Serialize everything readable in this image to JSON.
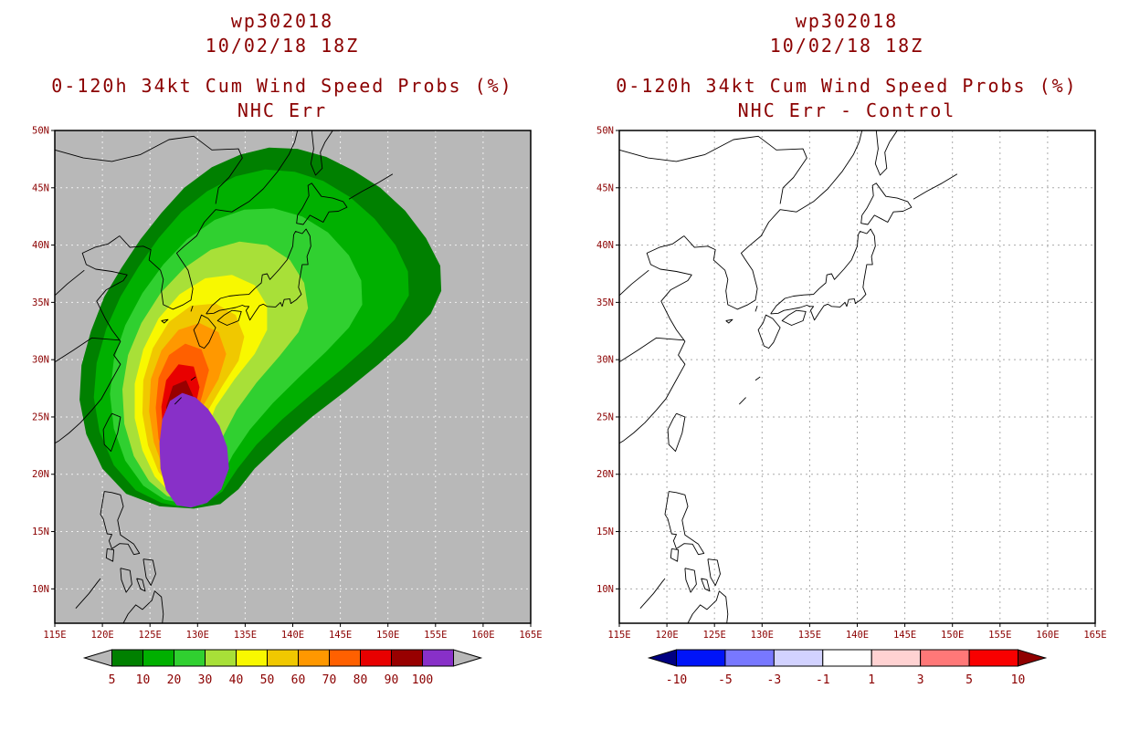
{
  "page": {
    "background": "#ffffff",
    "text_color": "#8b0000"
  },
  "panels": [
    {
      "name": "nhc-err",
      "titles": [
        "wp302018",
        "10/02/18 18Z"
      ],
      "subtitles": [
        "0-120h 34kt Cum Wind Speed Probs (%)",
        "NHC Err"
      ]
    },
    {
      "name": "nhc-err-minus-control",
      "titles": [
        "wp302018",
        "10/02/18 18Z"
      ],
      "subtitles": [
        "0-120h 34kt Cum Wind Speed Probs (%)",
        "NHC Err - Control"
      ]
    }
  ],
  "chart_data": [
    {
      "type": "heatmap",
      "subtype": "filled-contour-probability-map",
      "title": "wp302018 10/02/18 18Z",
      "subtitle": "0-120h 34kt Cum Wind Speed Probs (%) - NHC Err",
      "lon_range": [
        115,
        165
      ],
      "lat_range": [
        7,
        50
      ],
      "x_ticks": [
        "115E",
        "120E",
        "125E",
        "130E",
        "135E",
        "140E",
        "145E",
        "150E",
        "155E",
        "160E",
        "165E"
      ],
      "y_ticks": [
        "50N",
        "45N",
        "40N",
        "35N",
        "30N",
        "25N",
        "20N",
        "15N",
        "10N"
      ],
      "grid": true,
      "grid_color": "#f0f0f0",
      "background_color": "#b8b8b8",
      "colorbar": {
        "labels": [
          "5",
          "10",
          "20",
          "30",
          "40",
          "50",
          "60",
          "70",
          "80",
          "90",
          "100"
        ],
        "cell_colors": [
          "#008000",
          "#00b000",
          "#30d030",
          "#a8e038",
          "#f8f800",
          "#f0c800",
          "#ff9800",
          "#ff6000",
          "#e80000",
          "#980000",
          "#8830c8"
        ],
        "left_arrow_color": "#b8b8b8",
        "right_arrow_color": "#b8b8b8"
      },
      "contours": [
        {
          "level": 5,
          "color": "#008000",
          "polygon": [
            [
              126.0,
              17.2
            ],
            [
              122.5,
              18.3
            ],
            [
              120.0,
              20.5
            ],
            [
              118.3,
              23.5
            ],
            [
              117.6,
              26.5
            ],
            [
              117.8,
              29.5
            ],
            [
              118.8,
              32.5
            ],
            [
              120.2,
              35.5
            ],
            [
              122.0,
              38.0
            ],
            [
              124.0,
              40.5
            ],
            [
              126.2,
              42.8
            ],
            [
              128.6,
              45.0
            ],
            [
              131.5,
              46.8
            ],
            [
              134.5,
              47.9
            ],
            [
              137.5,
              48.5
            ],
            [
              140.5,
              48.4
            ],
            [
              143.5,
              47.7
            ],
            [
              146.4,
              46.5
            ],
            [
              149.2,
              45.0
            ],
            [
              151.8,
              43.0
            ],
            [
              154.0,
              40.6
            ],
            [
              155.5,
              38.2
            ],
            [
              155.6,
              36.0
            ],
            [
              154.5,
              34.0
            ],
            [
              152.0,
              31.8
            ],
            [
              149.0,
              29.6
            ],
            [
              145.6,
              27.3
            ],
            [
              142.0,
              25.0
            ],
            [
              138.8,
              22.7
            ],
            [
              136.0,
              20.5
            ],
            [
              134.3,
              18.7
            ],
            [
              132.4,
              17.4
            ],
            [
              129.6,
              17.0
            ]
          ]
        },
        {
          "level": 10,
          "color": "#00b000",
          "polygon": [
            [
              126.2,
              17.5
            ],
            [
              123.5,
              18.6
            ],
            [
              121.2,
              20.8
            ],
            [
              119.7,
              23.7
            ],
            [
              119.1,
              26.7
            ],
            [
              119.4,
              29.7
            ],
            [
              120.4,
              32.7
            ],
            [
              121.9,
              35.5
            ],
            [
              123.8,
              38.1
            ],
            [
              125.9,
              40.6
            ],
            [
              128.3,
              42.9
            ],
            [
              131.0,
              44.7
            ],
            [
              134.0,
              46.0
            ],
            [
              137.1,
              46.6
            ],
            [
              140.2,
              46.4
            ],
            [
              143.2,
              45.6
            ],
            [
              146.0,
              44.2
            ],
            [
              148.6,
              42.3
            ],
            [
              150.8,
              40.0
            ],
            [
              152.1,
              37.7
            ],
            [
              152.2,
              35.6
            ],
            [
              150.7,
              33.5
            ],
            [
              148.2,
              31.4
            ],
            [
              145.2,
              29.2
            ],
            [
              142.0,
              27.0
            ],
            [
              138.9,
              24.8
            ],
            [
              136.2,
              22.6
            ],
            [
              134.2,
              20.5
            ],
            [
              132.6,
              18.5
            ],
            [
              130.5,
              17.3
            ],
            [
              128.0,
              17.2
            ]
          ]
        },
        {
          "level": 20,
          "color": "#30d030",
          "polygon": [
            [
              126.5,
              17.8
            ],
            [
              124.3,
              19.0
            ],
            [
              122.4,
              21.2
            ],
            [
              121.2,
              24.0
            ],
            [
              120.8,
              27.0
            ],
            [
              121.2,
              30.0
            ],
            [
              122.4,
              33.0
            ],
            [
              124.2,
              35.8
            ],
            [
              126.4,
              38.3
            ],
            [
              128.9,
              40.5
            ],
            [
              131.8,
              42.2
            ],
            [
              134.9,
              43.1
            ],
            [
              138.0,
              43.2
            ],
            [
              141.0,
              42.5
            ],
            [
              143.7,
              41.1
            ],
            [
              145.9,
              39.1
            ],
            [
              147.2,
              36.9
            ],
            [
              147.3,
              34.8
            ],
            [
              145.9,
              32.8
            ],
            [
              143.5,
              30.7
            ],
            [
              140.7,
              28.5
            ],
            [
              137.9,
              26.2
            ],
            [
              135.5,
              23.9
            ],
            [
              133.7,
              21.7
            ],
            [
              132.4,
              19.6
            ],
            [
              130.5,
              17.9
            ],
            [
              128.2,
              17.5
            ]
          ]
        },
        {
          "level": 30,
          "color": "#a8e038",
          "polygon": [
            [
              126.8,
              18.1
            ],
            [
              124.9,
              19.4
            ],
            [
              123.3,
              21.6
            ],
            [
              122.3,
              24.4
            ],
            [
              122.1,
              27.4
            ],
            [
              122.7,
              30.4
            ],
            [
              124.1,
              33.2
            ],
            [
              126.1,
              35.8
            ],
            [
              128.6,
              38.0
            ],
            [
              131.4,
              39.6
            ],
            [
              134.4,
              40.3
            ],
            [
              137.3,
              40.0
            ],
            [
              139.7,
              38.7
            ],
            [
              141.2,
              36.7
            ],
            [
              141.6,
              34.5
            ],
            [
              140.6,
              32.4
            ],
            [
              138.6,
              30.3
            ],
            [
              136.2,
              28.0
            ],
            [
              134.1,
              25.6
            ],
            [
              132.6,
              23.2
            ],
            [
              131.6,
              20.8
            ],
            [
              130.1,
              18.6
            ],
            [
              128.1,
              17.8
            ]
          ]
        },
        {
          "level": 40,
          "color": "#f8f800",
          "polygon": [
            [
              127.1,
              18.4
            ],
            [
              125.5,
              19.8
            ],
            [
              124.2,
              22.1
            ],
            [
              123.4,
              24.9
            ],
            [
              123.4,
              27.9
            ],
            [
              124.3,
              30.9
            ],
            [
              125.9,
              33.6
            ],
            [
              128.1,
              35.7
            ],
            [
              130.8,
              37.1
            ],
            [
              133.6,
              37.4
            ],
            [
              136.0,
              36.5
            ],
            [
              137.3,
              34.7
            ],
            [
              137.3,
              32.6
            ],
            [
              136.0,
              30.5
            ],
            [
              133.9,
              28.3
            ],
            [
              131.9,
              25.9
            ],
            [
              130.7,
              23.3
            ],
            [
              130.0,
              20.7
            ],
            [
              128.8,
              18.6
            ]
          ]
        },
        {
          "level": 50,
          "color": "#f0c800",
          "polygon": [
            [
              127.4,
              18.7
            ],
            [
              125.9,
              20.2
            ],
            [
              124.8,
              22.5
            ],
            [
              124.2,
              25.3
            ],
            [
              124.3,
              28.2
            ],
            [
              125.3,
              31.0
            ],
            [
              127.0,
              33.3
            ],
            [
              129.3,
              34.7
            ],
            [
              131.9,
              34.9
            ],
            [
              134.0,
              33.9
            ],
            [
              134.9,
              32.0
            ],
            [
              134.3,
              29.9
            ],
            [
              132.6,
              27.7
            ],
            [
              130.9,
              25.3
            ],
            [
              130.0,
              22.7
            ],
            [
              129.2,
              20.1
            ],
            [
              128.1,
              18.5
            ]
          ]
        },
        {
          "level": 60,
          "color": "#ff9800",
          "polygon": [
            [
              127.7,
              19.0
            ],
            [
              126.4,
              20.5
            ],
            [
              125.4,
              22.8
            ],
            [
              124.9,
              25.5
            ],
            [
              125.1,
              28.3
            ],
            [
              126.2,
              30.8
            ],
            [
              128.0,
              32.6
            ],
            [
              130.2,
              33.2
            ],
            [
              132.2,
              32.4
            ],
            [
              133.0,
              30.5
            ],
            [
              132.2,
              28.3
            ],
            [
              130.6,
              26.0
            ],
            [
              129.7,
              23.4
            ],
            [
              129.1,
              20.8
            ],
            [
              128.4,
              19.3
            ]
          ]
        },
        {
          "level": 70,
          "color": "#ff6000",
          "polygon": [
            [
              127.9,
              19.3
            ],
            [
              126.8,
              20.8
            ],
            [
              125.9,
              23.1
            ],
            [
              125.6,
              25.8
            ],
            [
              125.9,
              28.4
            ],
            [
              127.0,
              30.4
            ],
            [
              128.7,
              31.4
            ],
            [
              130.4,
              30.9
            ],
            [
              131.2,
              29.1
            ],
            [
              130.5,
              26.9
            ],
            [
              129.6,
              24.4
            ],
            [
              129.2,
              21.8
            ],
            [
              128.6,
              19.9
            ]
          ]
        },
        {
          "level": 80,
          "color": "#e80000",
          "polygon": [
            [
              128.1,
              19.6
            ],
            [
              127.1,
              21.1
            ],
            [
              126.4,
              23.4
            ],
            [
              126.2,
              25.9
            ],
            [
              126.7,
              28.2
            ],
            [
              128.0,
              29.6
            ],
            [
              129.6,
              29.4
            ],
            [
              130.2,
              27.6
            ],
            [
              129.6,
              25.2
            ],
            [
              129.0,
              22.7
            ],
            [
              128.5,
              20.3
            ]
          ]
        },
        {
          "level": 90,
          "color": "#980000",
          "polygon": [
            [
              128.3,
              19.9
            ],
            [
              127.4,
              21.4
            ],
            [
              126.8,
              23.6
            ],
            [
              126.7,
              25.9
            ],
            [
              127.4,
              27.7
            ],
            [
              128.8,
              28.2
            ],
            [
              129.6,
              26.7
            ],
            [
              129.2,
              24.3
            ],
            [
              128.7,
              21.9
            ],
            [
              128.4,
              20.3
            ]
          ]
        },
        {
          "level": 100,
          "color": "#8830c8",
          "polygon": [
            [
              127.8,
              17.3
            ],
            [
              126.7,
              18.6
            ],
            [
              126.1,
              20.5
            ],
            [
              126.0,
              22.7
            ],
            [
              126.3,
              24.8
            ],
            [
              127.1,
              26.4
            ],
            [
              128.4,
              27.1
            ],
            [
              129.8,
              26.7
            ],
            [
              131.1,
              25.7
            ],
            [
              132.3,
              24.2
            ],
            [
              133.1,
              22.4
            ],
            [
              133.3,
              20.5
            ],
            [
              132.5,
              18.7
            ],
            [
              131.0,
              17.5
            ],
            [
              129.3,
              17.1
            ]
          ]
        }
      ]
    },
    {
      "type": "heatmap",
      "subtype": "filled-contour-difference-map",
      "title": "wp302018 10/02/18 18Z",
      "subtitle": "0-120h 34kt Cum Wind Speed Probs (%) - NHC Err - Control",
      "lon_range": [
        115,
        165
      ],
      "lat_range": [
        7,
        50
      ],
      "x_ticks": [
        "115E",
        "120E",
        "125E",
        "130E",
        "135E",
        "140E",
        "145E",
        "150E",
        "155E",
        "160E",
        "165E"
      ],
      "y_ticks": [
        "50N",
        "45N",
        "40N",
        "35N",
        "30N",
        "25N",
        "20N",
        "15N",
        "10N"
      ],
      "grid": true,
      "grid_color": "#aaaaaa",
      "background_color": "#ffffff",
      "colorbar": {
        "labels": [
          "-10",
          "-5",
          "-3",
          "-1",
          "1",
          "3",
          "5",
          "10"
        ],
        "cell_colors": [
          "#0014f8",
          "#7878ff",
          "#d2d2ff",
          "#ffffff",
          "#ffd2d2",
          "#ff7878",
          "#f80000"
        ],
        "left_arrow_color": "#000082",
        "right_arrow_color": "#900000"
      },
      "contours": [],
      "note": "difference field within (-1,1) everywhere: no shaded regions visible"
    }
  ]
}
